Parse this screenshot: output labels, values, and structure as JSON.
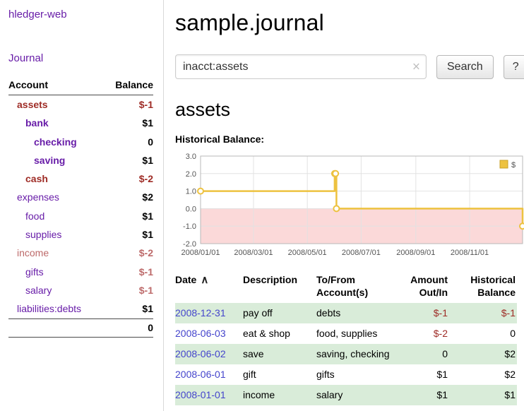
{
  "colors": {
    "link_purple": "#681da8",
    "date_link_blue": "#4444cc",
    "negative_strong": "#9e2b25",
    "negative_soft": "#bd6a6a",
    "row_stripe_green": "#d9ecd9",
    "series_gold": "#edc240",
    "negative_region_pink": "#fbd9d9"
  },
  "sidebar": {
    "app_title": "hledger-web",
    "journal_link": "Journal",
    "header": {
      "account": "Account",
      "balance": "Balance"
    },
    "accounts": [
      {
        "name": "assets",
        "balance": "$-1"
      },
      {
        "name": "bank",
        "balance": "$1"
      },
      {
        "name": "checking",
        "balance": "0"
      },
      {
        "name": "saving",
        "balance": "$1"
      },
      {
        "name": "cash",
        "balance": "$-2"
      },
      {
        "name": "expenses",
        "balance": "$2"
      },
      {
        "name": "food",
        "balance": "$1"
      },
      {
        "name": "supplies",
        "balance": "$1"
      },
      {
        "name": "income",
        "balance": "$-2"
      },
      {
        "name": "gifts",
        "balance": "$-1"
      },
      {
        "name": "salary",
        "balance": "$-1"
      },
      {
        "name": "liabilities:debts",
        "balance": "$1"
      }
    ],
    "total": "0"
  },
  "main": {
    "title": "sample.journal",
    "search": {
      "value": "inacct:assets",
      "clear_icon": "×",
      "button_label": "Search",
      "help_label": "?"
    },
    "account_heading": "assets",
    "chart_title": "Historical Balance:",
    "register": {
      "headers": {
        "date": "Date",
        "sort_icon": "∧",
        "description": "Description",
        "accounts": "To/From Account(s)",
        "amount": "Amount Out/In",
        "balance": "Historical Balance"
      },
      "rows": [
        {
          "date": "2008-12-31",
          "description": "pay off",
          "accounts": "debts",
          "amount": "$-1",
          "balance": "$-1"
        },
        {
          "date": "2008-06-03",
          "description": "eat & shop",
          "accounts": "food, supplies",
          "amount": "$-2",
          "balance": "0"
        },
        {
          "date": "2008-06-02",
          "description": "save",
          "accounts": "saving, checking",
          "amount": "0",
          "balance": "$2"
        },
        {
          "date": "2008-06-01",
          "description": "gift",
          "accounts": "gifts",
          "amount": "$1",
          "balance": "$2"
        },
        {
          "date": "2008-01-01",
          "description": "income",
          "accounts": "salary",
          "amount": "$1",
          "balance": "$1"
        }
      ]
    }
  },
  "chart_data": {
    "type": "line",
    "step": true,
    "title": "Historical Balance",
    "legend": "top-right",
    "series": [
      {
        "name": "$",
        "color": "#edc240",
        "points": [
          [
            "2008-01-01",
            1
          ],
          [
            "2008-06-01",
            2
          ],
          [
            "2008-06-02",
            2
          ],
          [
            "2008-06-03",
            0
          ],
          [
            "2008-12-31",
            -1
          ]
        ]
      }
    ],
    "x_ticks": [
      "2008/01/01",
      "2008/03/01",
      "2008/05/01",
      "2008/07/01",
      "2008/09/01",
      "2008/11/01"
    ],
    "y_ticks": [
      3,
      2,
      1,
      0,
      -1,
      -2
    ],
    "xlim": [
      "2008-01-01",
      "2008-12-31"
    ],
    "ylim": [
      -2,
      3
    ],
    "grid": true,
    "negative_region_color": "#fbd9d9"
  }
}
